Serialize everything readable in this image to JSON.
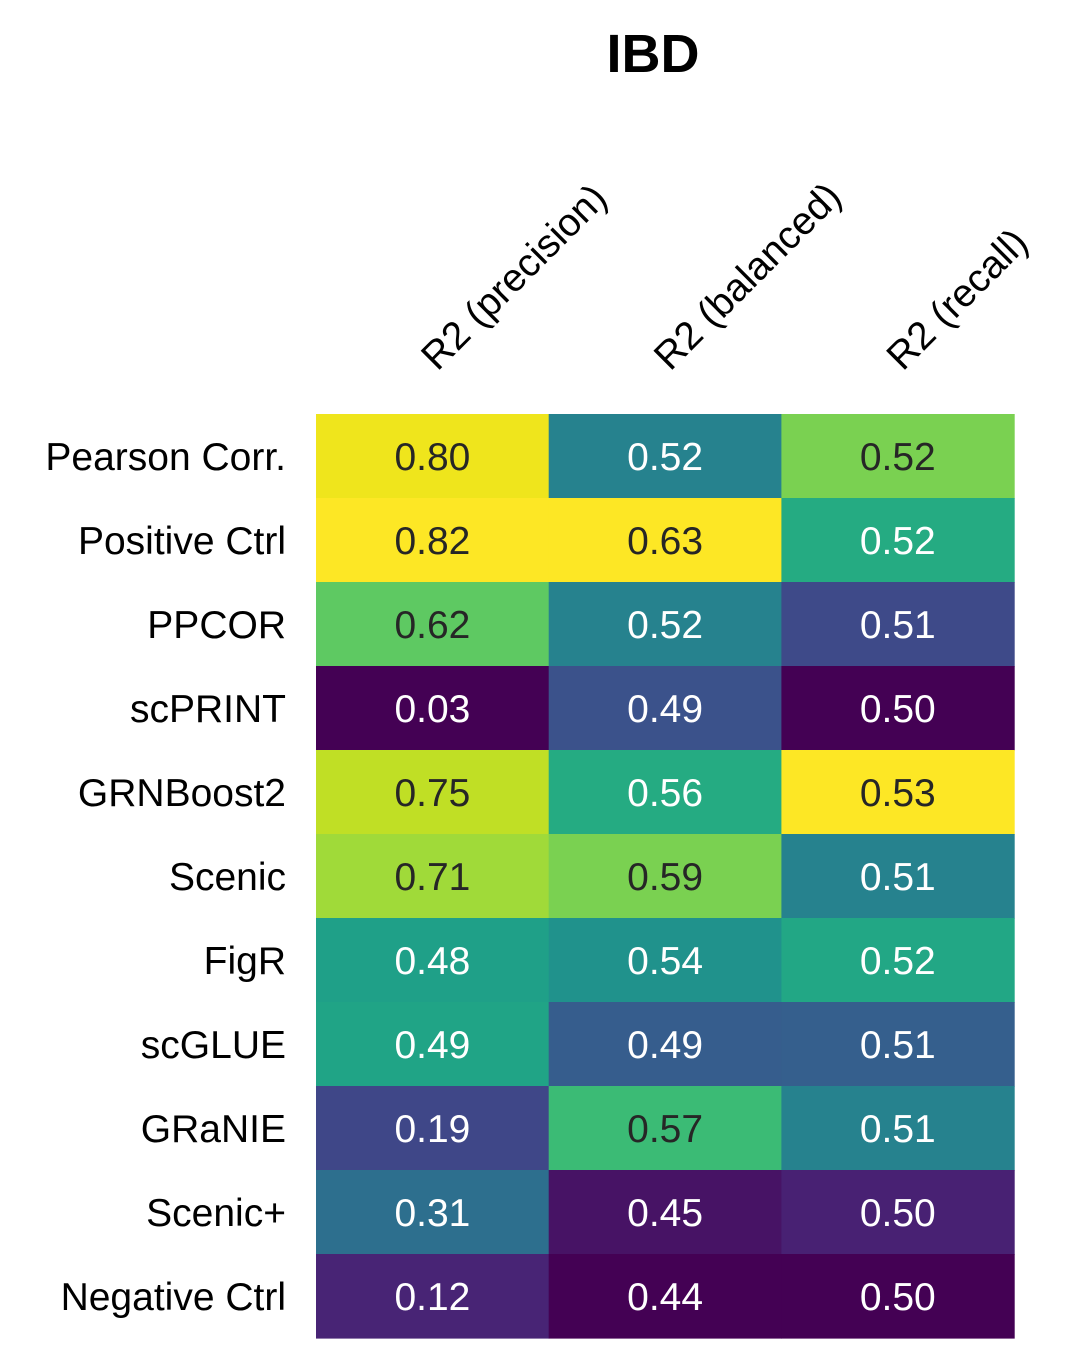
{
  "chart_data": {
    "type": "heatmap",
    "title": "IBD",
    "columns": [
      "R2 (precision)",
      "R2 (balanced)",
      "R2 (recall)"
    ],
    "rows": [
      "Pearson Corr.",
      "Positive Ctrl",
      "PPCOR",
      "scPRINT",
      "GRNBoost2",
      "Scenic",
      "FigR",
      "scGLUE",
      "GRaNIE",
      "Scenic+",
      "Negative Ctrl"
    ],
    "values": [
      [
        0.8,
        0.52,
        0.52
      ],
      [
        0.82,
        0.63,
        0.52
      ],
      [
        0.62,
        0.52,
        0.51
      ],
      [
        0.03,
        0.49,
        0.5
      ],
      [
        0.75,
        0.56,
        0.53
      ],
      [
        0.71,
        0.59,
        0.51
      ],
      [
        0.48,
        0.54,
        0.52
      ],
      [
        0.49,
        0.49,
        0.51
      ],
      [
        0.19,
        0.57,
        0.51
      ],
      [
        0.31,
        0.45,
        0.5
      ],
      [
        0.12,
        0.44,
        0.5
      ]
    ],
    "colormap": "viridis",
    "color_scale": "per-column",
    "cell_colors": [
      [
        "#efe51c",
        "#26828e",
        "#7ad151"
      ],
      [
        "#fde725",
        "#fde725",
        "#25ab82"
      ],
      [
        "#5ec962",
        "#26828e",
        "#3e4a89"
      ],
      [
        "#440154",
        "#3b528b",
        "#440154"
      ],
      [
        "#c0df25",
        "#25ab82",
        "#fde725"
      ],
      [
        "#a0da39",
        "#7ad151",
        "#26828e"
      ],
      [
        "#1fa088",
        "#20928c",
        "#22a785"
      ],
      [
        "#20a486",
        "#365d8d",
        "#355f8d"
      ],
      [
        "#3f4788",
        "#3bbb75",
        "#26828e"
      ],
      [
        "#2d6f8e",
        "#471365",
        "#482173"
      ],
      [
        "#482475",
        "#440154",
        "#440154"
      ]
    ],
    "text_colors": {
      "dark": "#262626",
      "light": "#ffffff"
    }
  }
}
